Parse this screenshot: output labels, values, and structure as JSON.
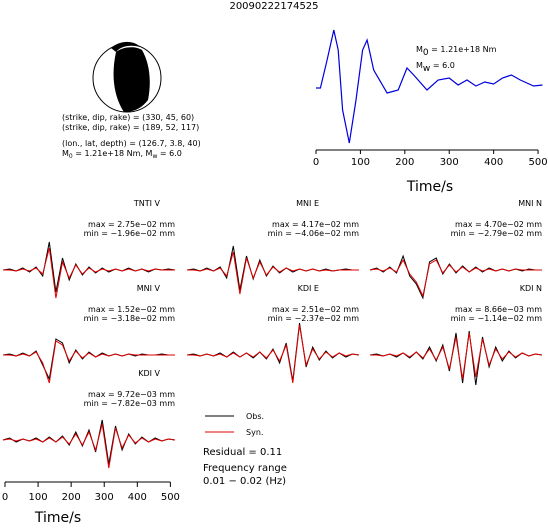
{
  "title": "20090222174525",
  "source": {
    "lines": [
      "(strike, dip, rake) = (330, 45, 60)",
      "(strike, dip, rake) = (189, 52, 117)",
      "(lon., lat, depth) = (126.7, 3.8, 40)"
    ],
    "moment": [
      {
        "symbol": "M",
        "sub": "0",
        "text": " = 1.21e+18 Nm, "
      },
      {
        "symbol": "M",
        "sub": "w",
        "text": " = 6.0"
      }
    ]
  },
  "chart_data": [
    {
      "type": "line",
      "color": "#0000dd",
      "x": [
        0,
        10,
        25,
        40,
        50,
        60,
        75,
        90,
        105,
        115,
        130,
        160,
        185,
        205,
        220,
        250,
        275,
        300,
        320,
        340,
        360,
        380,
        400,
        420,
        440,
        460,
        490,
        510
      ],
      "values": [
        0,
        0,
        28,
        58,
        38,
        -22,
        -55,
        -12,
        38,
        48,
        18,
        -5,
        -2,
        20,
        13,
        -2,
        8,
        10,
        3,
        8,
        2,
        6,
        4,
        10,
        13,
        8,
        2,
        3
      ],
      "xlim": [
        0,
        510
      ],
      "xticks": [
        0,
        100,
        200,
        300,
        400,
        500
      ],
      "ylim": [
        -60,
        60
      ],
      "xlabel": "Time/s",
      "annotations": [
        {
          "symbol": "M",
          "sub": "0",
          "text": " = 1.21e+18 Nm"
        },
        {
          "symbol": "M",
          "sub": "w",
          "text": " = 6.0"
        }
      ]
    },
    {
      "type": "waveforms",
      "x": [
        0,
        20,
        40,
        60,
        80,
        100,
        120,
        140,
        160,
        180,
        200,
        220,
        240,
        260,
        280,
        300,
        320,
        340,
        360,
        380,
        400,
        420,
        440,
        460,
        480,
        500,
        520
      ],
      "xlim": [
        0,
        520
      ],
      "xticks": [
        0,
        100,
        200,
        300,
        400,
        500
      ],
      "ylim": [
        -30,
        30
      ],
      "xlabel": "Time/s",
      "legend": [
        {
          "name": "Obs.",
          "color": "#000000"
        },
        {
          "name": "Syn.",
          "color": "#e00000"
        }
      ],
      "residual": "Residual = 0.11",
      "frequency_label": "Frequency range",
      "frequency": "0.01 − 0.02 (Hz)",
      "panels": [
        {
          "label": "TNTI V",
          "max": "max = 2.75e−02 mm",
          "min": "min = −1.96e−02 mm",
          "obs": [
            0,
            1,
            -1,
            2,
            -2,
            3,
            -6,
            28,
            -22,
            12,
            -10,
            6,
            -5,
            3,
            -3,
            2,
            -2,
            1,
            -1,
            2,
            -1,
            1,
            -2,
            1,
            0,
            1,
            0
          ],
          "syn": [
            0,
            0,
            -1,
            1,
            -1,
            2,
            -4,
            22,
            -28,
            8,
            -8,
            5,
            -4,
            2,
            -2,
            1,
            -1,
            1,
            -1,
            1,
            -1,
            1,
            -1,
            1,
            0,
            0,
            0
          ]
        },
        {
          "label": "MNI E",
          "max": "max = 4.17e−02 mm",
          "min": "min = −4.06e−02 mm",
          "obs": [
            0,
            1,
            -1,
            2,
            -1,
            3,
            -8,
            24,
            -20,
            14,
            -9,
            10,
            -6,
            4,
            -3,
            2,
            -2,
            1,
            -1,
            1,
            -1,
            1,
            -1,
            0,
            1,
            0,
            0
          ],
          "syn": [
            0,
            0,
            -1,
            1,
            -1,
            2,
            -6,
            18,
            -24,
            12,
            -8,
            8,
            -5,
            3,
            -2,
            2,
            -1,
            1,
            -1,
            1,
            -1,
            0,
            -1,
            0,
            0,
            0,
            0
          ]
        },
        {
          "label": "MNI N",
          "max": "max = 4.70e−02 mm",
          "min": "min = −2.79e−02 mm",
          "obs": [
            0,
            2,
            -2,
            3,
            -3,
            14,
            -6,
            -14,
            -28,
            8,
            12,
            -4,
            6,
            -3,
            4,
            -2,
            3,
            -2,
            2,
            -1,
            1,
            -1,
            1,
            -1,
            1,
            0,
            0
          ],
          "syn": [
            0,
            1,
            -1,
            2,
            -2,
            10,
            -4,
            -12,
            -26,
            6,
            10,
            -3,
            5,
            -2,
            3,
            -2,
            2,
            -1,
            1,
            -1,
            1,
            -1,
            1,
            0,
            0,
            0,
            0
          ]
        },
        {
          "label": "MNI V",
          "max": "max = 1.52e−02 mm",
          "min": "min = −3.18e−02 mm",
          "obs": [
            0,
            1,
            -1,
            2,
            -1,
            4,
            -10,
            -24,
            16,
            12,
            -8,
            5,
            -4,
            3,
            -2,
            2,
            -1,
            1,
            -1,
            1,
            -1,
            1,
            0,
            0,
            1,
            0,
            0
          ],
          "syn": [
            0,
            0,
            -1,
            1,
            -1,
            3,
            -8,
            -28,
            14,
            10,
            -6,
            4,
            -3,
            2,
            -2,
            1,
            -1,
            1,
            -1,
            1,
            0,
            0,
            0,
            0,
            0,
            0,
            0
          ]
        },
        {
          "label": "KDI E",
          "max": "max = 2.51e−02 mm",
          "min": "min = −2.37e−02 mm",
          "obs": [
            0,
            1,
            -1,
            1,
            -1,
            2,
            -2,
            3,
            -2,
            2,
            -3,
            3,
            -4,
            6,
            -8,
            12,
            -26,
            32,
            -12,
            8,
            -5,
            4,
            -3,
            2,
            -2,
            1,
            0
          ],
          "syn": [
            0,
            0,
            -1,
            1,
            -1,
            1,
            -2,
            2,
            -2,
            2,
            -2,
            3,
            -3,
            5,
            -6,
            10,
            -28,
            30,
            -10,
            6,
            -4,
            3,
            -2,
            2,
            -1,
            1,
            0
          ]
        },
        {
          "label": "KDI N",
          "max": "max = 8.66e−03 mm",
          "min": "min = −1.14e−02 mm",
          "obs": [
            0,
            1,
            -1,
            1,
            -2,
            2,
            -3,
            3,
            -4,
            8,
            -6,
            10,
            -16,
            22,
            -28,
            24,
            -30,
            18,
            -12,
            8,
            -6,
            4,
            -3,
            2,
            -1,
            1,
            0
          ],
          "syn": [
            0,
            0,
            -1,
            1,
            -1,
            2,
            -2,
            3,
            -3,
            6,
            -5,
            8,
            -14,
            18,
            -24,
            22,
            -22,
            16,
            -10,
            6,
            -4,
            3,
            -2,
            2,
            -1,
            1,
            0
          ]
        },
        {
          "label": "KDI V",
          "max": "max = 9.72e−03 mm",
          "min": "min = −7.82e−03 mm",
          "obs": [
            0,
            2,
            -2,
            1,
            -1,
            2,
            -2,
            3,
            -2,
            4,
            -5,
            8,
            -6,
            10,
            -12,
            20,
            -24,
            14,
            -10,
            6,
            -4,
            3,
            -2,
            2,
            -1,
            1,
            0
          ],
          "syn": [
            0,
            1,
            -1,
            1,
            -1,
            1,
            -2,
            2,
            -2,
            3,
            -4,
            6,
            -5,
            8,
            -10,
            16,
            -28,
            12,
            -8,
            5,
            -3,
            2,
            -2,
            1,
            -1,
            1,
            0
          ]
        }
      ]
    }
  ]
}
